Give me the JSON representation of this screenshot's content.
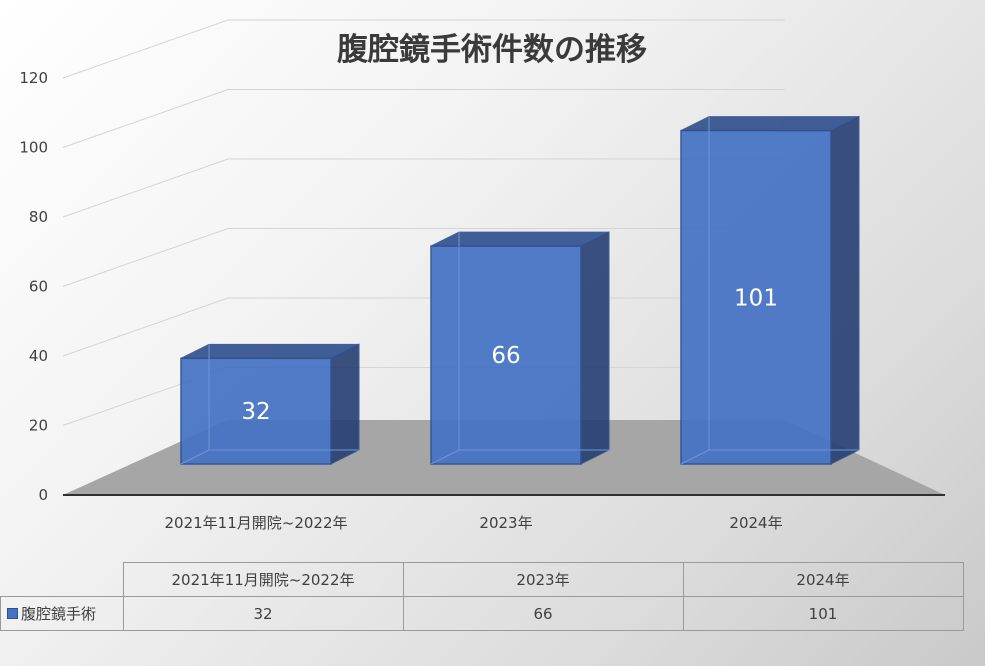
{
  "chart_data": {
    "type": "bar",
    "title": "腹腔鏡手術件数の推移",
    "categories": [
      "2021年11月開院~2022年",
      "2023年",
      "2024年"
    ],
    "series": [
      {
        "name": "腹腔鏡手術",
        "values": [
          32,
          66,
          101
        ]
      }
    ],
    "ylim": [
      0,
      120
    ],
    "yticks": [
      0,
      20,
      40,
      60,
      80,
      100,
      120
    ],
    "xlabel": "",
    "ylabel": "",
    "grid": true,
    "three_d": true,
    "data_labels": true,
    "data_table": true,
    "colors": {
      "bar_front": "#4472c4",
      "bar_top": "#2f4e8c",
      "bar_side": "#263f72",
      "floor": "#a6a6a6",
      "grid": "#d4d4d4"
    }
  }
}
